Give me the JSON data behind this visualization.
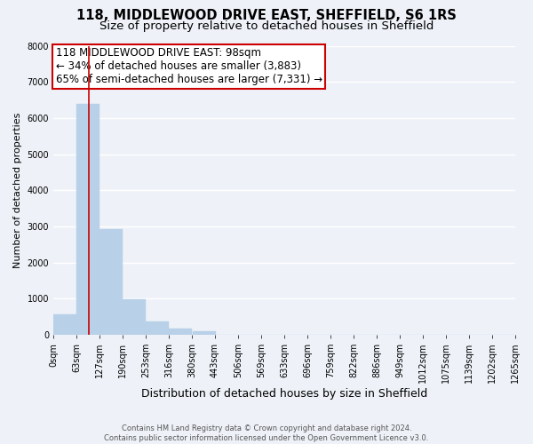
{
  "title": "118, MIDDLEWOOD DRIVE EAST, SHEFFIELD, S6 1RS",
  "subtitle": "Size of property relative to detached houses in Sheffield",
  "xlabel": "Distribution of detached houses by size in Sheffield",
  "ylabel": "Number of detached properties",
  "bar_values": [
    560,
    6400,
    2930,
    975,
    375,
    175,
    95,
    0,
    0,
    0,
    0,
    0,
    0,
    0,
    0,
    0,
    0,
    0,
    0,
    0
  ],
  "bar_left_edges": [
    0,
    63,
    127,
    190,
    253,
    316,
    380,
    443,
    506,
    569,
    633,
    696,
    759,
    822,
    886,
    949,
    1012,
    1075,
    1139,
    1202
  ],
  "bin_width": 63,
  "tick_labels": [
    "0sqm",
    "63sqm",
    "127sqm",
    "190sqm",
    "253sqm",
    "316sqm",
    "380sqm",
    "443sqm",
    "506sqm",
    "569sqm",
    "633sqm",
    "696sqm",
    "759sqm",
    "822sqm",
    "886sqm",
    "949sqm",
    "1012sqm",
    "1075sqm",
    "1139sqm",
    "1202sqm",
    "1265sqm"
  ],
  "bar_color": "#b8d0e8",
  "bar_edgecolor": "#b8d0e8",
  "property_line_x": 98,
  "annotation_line1": "118 MIDDLEWOOD DRIVE EAST: 98sqm",
  "annotation_line2": "← 34% of detached houses are smaller (3,883)",
  "annotation_line3": "65% of semi-detached houses are larger (7,331) →",
  "annotation_box_color": "#ffffff",
  "annotation_box_edgecolor": "#cc0000",
  "annotation_fontsize": 8.5,
  "property_line_color": "#cc0000",
  "ylim": [
    0,
    8000
  ],
  "yticks": [
    0,
    1000,
    2000,
    3000,
    4000,
    5000,
    6000,
    7000,
    8000
  ],
  "background_color": "#eef2f8",
  "grid_color": "#ffffff",
  "footer_text": "Contains HM Land Registry data © Crown copyright and database right 2024.\nContains public sector information licensed under the Open Government Licence v3.0.",
  "title_fontsize": 10.5,
  "subtitle_fontsize": 9.5,
  "xlabel_fontsize": 9,
  "ylabel_fontsize": 8,
  "tick_fontsize": 7
}
